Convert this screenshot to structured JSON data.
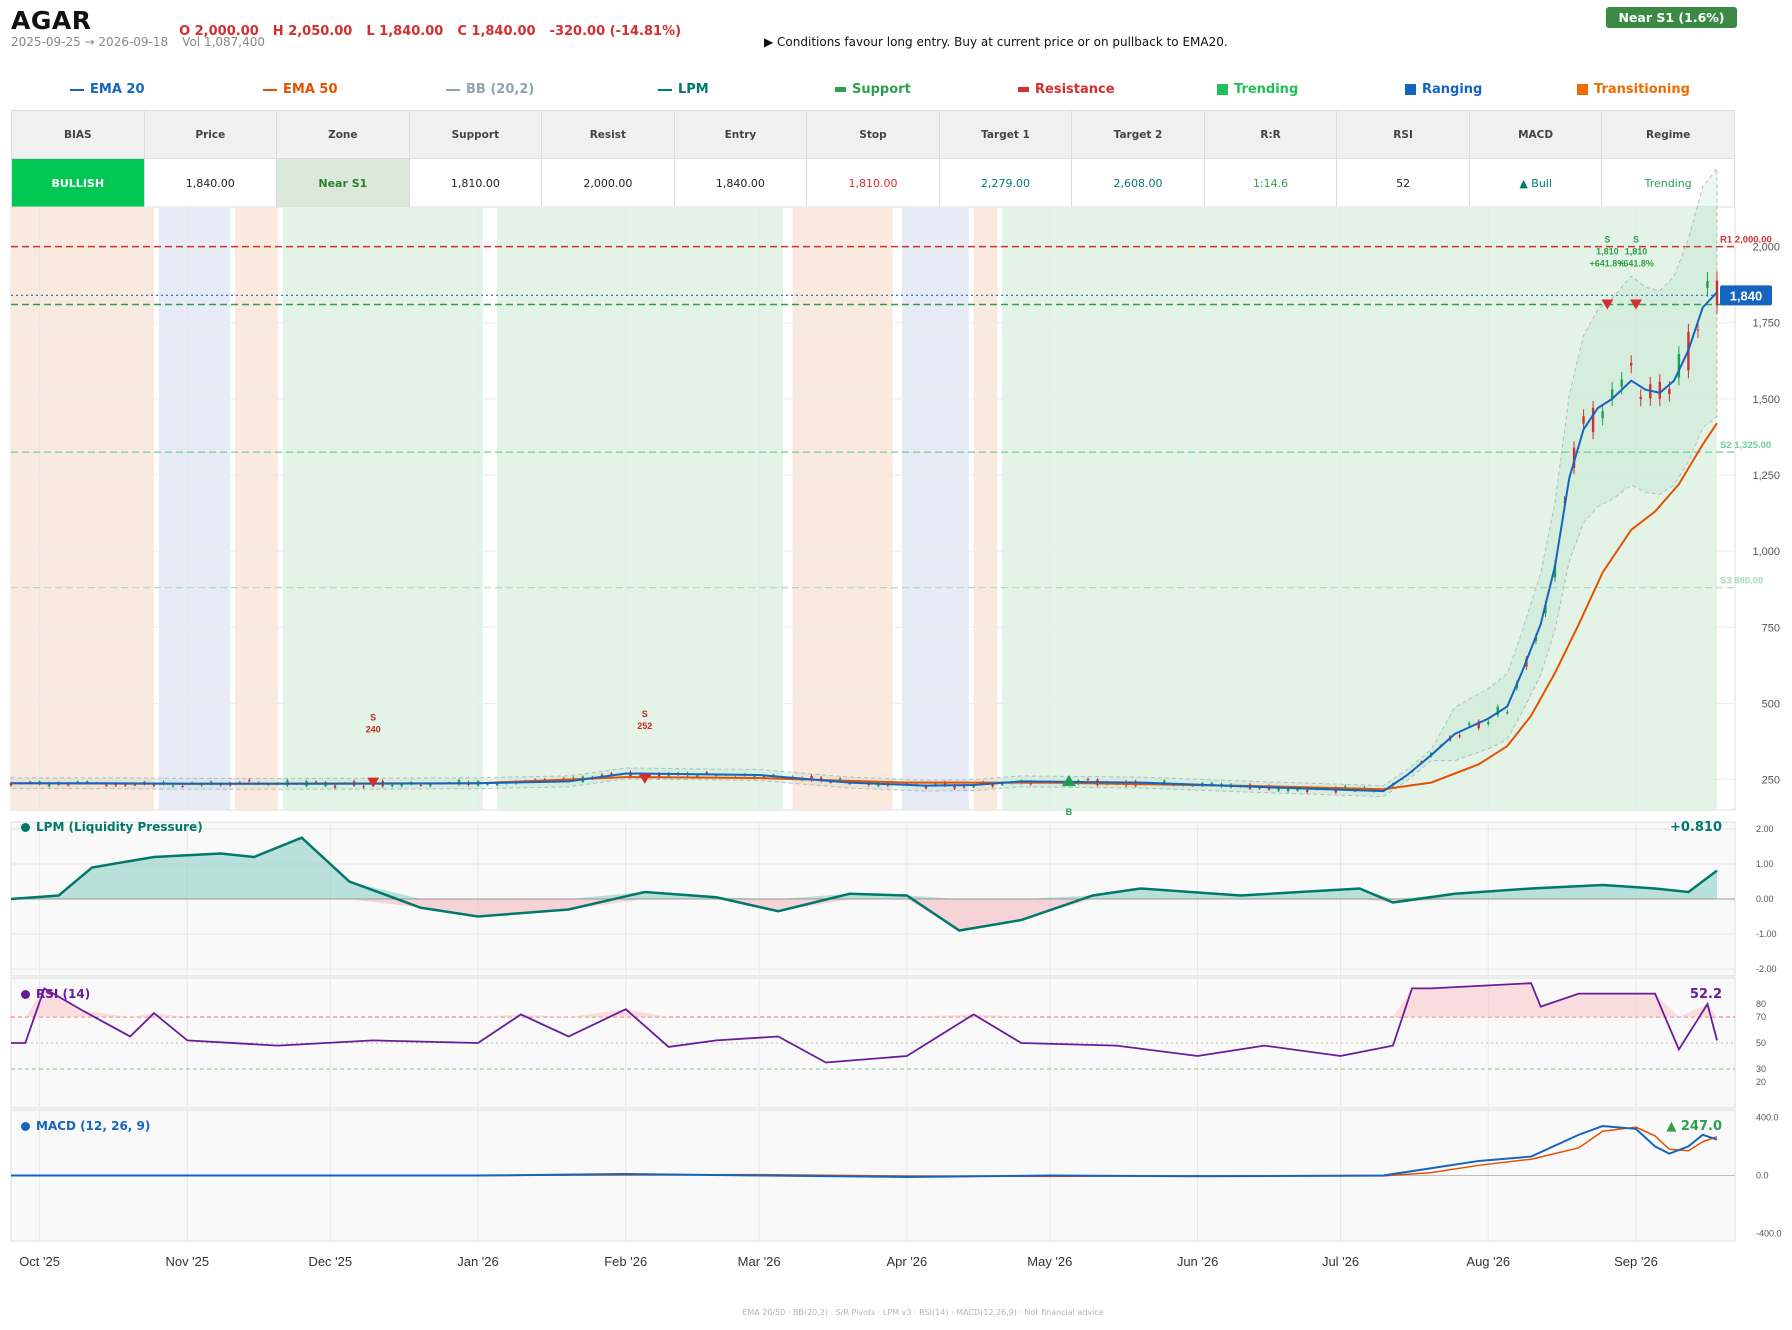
{
  "header": {
    "ticker": "AGAR",
    "open": "O 2,000.00",
    "high": "H 2,050.00",
    "low": "L 1,840.00",
    "close": "C 1,840.00",
    "change": "-320.00 (-14.81%)",
    "date_range": "2025-09-25 → 2026-09-18",
    "volume": "Vol 1,087,400",
    "signal": "▶  Conditions favour long entry. Buy at current price or on pullback to EMA20.",
    "zone_badge": "Near S1  (1.6%)"
  },
  "legend": [
    {
      "label": "EMA 20",
      "color": "#1565c0",
      "symbol": "line"
    },
    {
      "label": "EMA 50",
      "color": "#e65100",
      "symbol": "line"
    },
    {
      "label": "BB (20,2)",
      "color": "#90a4ae",
      "symbol": "line"
    },
    {
      "label": "LPM",
      "color": "#00796b",
      "symbol": "line"
    },
    {
      "label": "Support",
      "color": "#2e9e4f",
      "symbol": "bar"
    },
    {
      "label": "Resistance",
      "color": "#d32f2f",
      "symbol": "bar"
    },
    {
      "label": "Trending",
      "color": "#21c15a",
      "symbol": "square"
    },
    {
      "label": "Ranging",
      "color": "#1565c0",
      "symbol": "square"
    },
    {
      "label": "Transitioning",
      "color": "#ef6c00",
      "symbol": "square"
    }
  ],
  "summary": {
    "headers": [
      "BIAS",
      "Price",
      "Zone",
      "Support",
      "Resist",
      "Entry",
      "Stop",
      "Target 1",
      "Target 2",
      "R:R",
      "RSI",
      "MACD",
      "Regime"
    ],
    "values": [
      "BULLISH",
      "1,840.00",
      "Near S1",
      "1,810.00",
      "2,000.00",
      "1,840.00",
      "1,810.00",
      "2,279.00",
      "2,608.00",
      "1:14.6",
      "52",
      "▲ Bull",
      "Trending"
    ],
    "value_colors": [
      "#ffffff",
      "#222222",
      "#2e7d32",
      "#222222",
      "#222222",
      "#222222",
      "#d32f2f",
      "#00796b",
      "#00796b",
      "#2e9e4f",
      "#222222",
      "#00796b",
      "#21a05a"
    ],
    "cell_backgrounds": [
      "#00c853",
      "#ffffff",
      "#dbe9db",
      "#ffffff",
      "#ffffff",
      "#ffffff",
      "#ffffff",
      "#ffffff",
      "#ffffff",
      "#ffffff",
      "#ffffff",
      "#ffffff",
      "#ffffff"
    ]
  },
  "panels": {
    "lpm_title": "LPM (Liquidity Pressure)",
    "lpm_value": "+0.810",
    "rsi_title": "RSI (14)",
    "rsi_value": "52.2",
    "macd_title": "MACD (12, 26, 9)",
    "macd_value": "▲ 247.0"
  },
  "footer": "EMA 20/50  ·  BB(20,2)  ·  S/R Pivots  ·  LPM v3  ·  RSI(14)  ·  MACD(12,26,9)  ·  Not financial advice",
  "chart_data": {
    "type": "line",
    "x_tick_labels": [
      "Oct '25",
      "Nov '25",
      "Dec '25",
      "Jan '26",
      "Feb '26",
      "Mar '26",
      "Apr '26",
      "May '26",
      "Jun '26",
      "Jul '26",
      "Aug '26",
      "Sep '26"
    ],
    "price_axis": {
      "ylim": [
        150,
        2130
      ],
      "ticks": [
        250,
        500,
        750,
        "1,000",
        "1,250",
        "1,500",
        "1,750",
        "2,000"
      ]
    },
    "levels": [
      {
        "label": "R1 2,000.00",
        "value": 2000,
        "color": "#d32f2f"
      },
      {
        "label": "S1 1,810.00",
        "value": 1810,
        "color": "#2e9e4f"
      },
      {
        "label": "S2 1,325.00",
        "value": 1325,
        "color": "#6fcf97"
      },
      {
        "label": "S3 880.00",
        "value": 880,
        "color": "#a5dcb8"
      }
    ],
    "last_price_label": "1,840",
    "last_price": 1840,
    "regimes": [
      {
        "type": "transitioning",
        "from": "2025-09-25",
        "to": "2025-10-25"
      },
      {
        "type": "ranging",
        "from": "2025-10-26",
        "to": "2025-11-10"
      },
      {
        "type": "transitioning",
        "from": "2025-11-11",
        "to": "2025-11-20"
      },
      {
        "type": "trending",
        "from": "2025-11-21",
        "to": "2026-01-02"
      },
      {
        "type": "trending",
        "from": "2026-01-05",
        "to": "2026-03-06"
      },
      {
        "type": "transitioning",
        "from": "2026-03-08",
        "to": "2026-03-29"
      },
      {
        "type": "ranging",
        "from": "2026-03-31",
        "to": "2026-04-14"
      },
      {
        "type": "transitioning",
        "from": "2026-04-15",
        "to": "2026-04-20"
      },
      {
        "type": "trending",
        "from": "2026-04-21",
        "to": "2026-09-18"
      }
    ],
    "series": [
      {
        "name": "EMA 20",
        "dates": [
          "2025-09-25",
          "2025-10-15",
          "2025-11-01",
          "2025-12-01",
          "2026-01-01",
          "2026-01-20",
          "2026-02-01",
          "2026-03-01",
          "2026-03-20",
          "2026-04-05",
          "2026-04-15",
          "2026-04-25",
          "2026-05-20",
          "2026-06-15",
          "2026-07-10",
          "2026-07-15",
          "2026-07-20",
          "2026-07-25",
          "2026-08-01",
          "2026-08-05",
          "2026-08-08",
          "2026-08-12",
          "2026-08-15",
          "2026-08-18",
          "2026-08-21",
          "2026-08-24",
          "2026-08-27",
          "2026-08-31",
          "2026-09-03",
          "2026-09-06",
          "2026-09-09",
          "2026-09-12",
          "2026-09-15",
          "2026-09-18"
        ],
        "values": [
          238,
          238,
          236,
          236,
          238,
          244,
          270,
          265,
          240,
          230,
          232,
          244,
          240,
          225,
          212,
          265,
          330,
          400,
          450,
          490,
          600,
          760,
          950,
          1240,
          1400,
          1470,
          1500,
          1560,
          1530,
          1520,
          1560,
          1660,
          1800,
          1850
        ]
      },
      {
        "name": "EMA 50",
        "dates": [
          "2025-09-25",
          "2025-11-01",
          "2026-01-01",
          "2026-02-01",
          "2026-03-01",
          "2026-04-01",
          "2026-05-01",
          "2026-06-15",
          "2026-07-10",
          "2026-07-20",
          "2026-07-30",
          "2026-08-05",
          "2026-08-10",
          "2026-08-15",
          "2026-08-20",
          "2026-08-25",
          "2026-08-31",
          "2026-09-05",
          "2026-09-10",
          "2026-09-15",
          "2026-09-18"
        ],
        "values": [
          238,
          236,
          238,
          258,
          255,
          240,
          240,
          228,
          218,
          240,
          300,
          360,
          460,
          600,
          760,
          930,
          1070,
          1130,
          1220,
          1350,
          1420
        ]
      },
      {
        "name": "LPM",
        "dates": [
          "2025-09-25",
          "2025-10-05",
          "2025-10-12",
          "2025-10-25",
          "2025-11-08",
          "2025-11-15",
          "2025-11-25",
          "2025-12-05",
          "2025-12-20",
          "2026-01-01",
          "2026-01-20",
          "2026-02-05",
          "2026-02-20",
          "2026-03-05",
          "2026-03-20",
          "2026-04-01",
          "2026-04-12",
          "2026-04-25",
          "2026-05-10",
          "2026-05-20",
          "2026-06-10",
          "2026-07-05",
          "2026-07-12",
          "2026-07-25",
          "2026-08-10",
          "2026-08-25",
          "2026-09-05",
          "2026-09-12",
          "2026-09-18"
        ],
        "values": [
          0,
          0.1,
          0.9,
          1.2,
          1.3,
          1.2,
          1.75,
          0.5,
          -0.25,
          -0.5,
          -0.3,
          0.2,
          0.05,
          -0.35,
          0.15,
          0.1,
          -0.9,
          -0.6,
          0.1,
          0.3,
          0.1,
          0.3,
          -0.1,
          0.15,
          0.3,
          0.4,
          0.3,
          0.2,
          0.81
        ]
      },
      {
        "name": "RSI (14)",
        "dates": [
          "2025-09-25",
          "2025-09-28",
          "2025-10-02",
          "2025-10-10",
          "2025-10-20",
          "2025-10-25",
          "2025-11-01",
          "2025-11-20",
          "2025-12-10",
          "2026-01-01",
          "2026-01-10",
          "2026-01-20",
          "2026-02-01",
          "2026-02-10",
          "2026-02-20",
          "2026-03-05",
          "2026-03-15",
          "2026-04-01",
          "2026-04-15",
          "2026-04-25",
          "2026-05-15",
          "2026-06-01",
          "2026-06-15",
          "2026-07-01",
          "2026-07-12",
          "2026-07-16",
          "2026-07-20",
          "2026-08-10",
          "2026-08-12",
          "2026-08-20",
          "2026-09-05",
          "2026-09-10",
          "2026-09-16",
          "2026-09-18"
        ],
        "values": [
          50,
          50,
          92,
          75,
          55,
          73,
          52,
          48,
          52,
          50,
          72,
          55,
          76,
          47,
          52,
          55,
          35,
          40,
          72,
          50,
          48,
          40,
          48,
          40,
          48,
          92,
          92,
          96,
          78,
          88,
          88,
          45,
          80,
          52
        ]
      },
      {
        "name": "MACD",
        "dates": [
          "2025-09-25",
          "2026-01-01",
          "2026-02-01",
          "2026-03-01",
          "2026-04-01",
          "2026-05-01",
          "2026-06-01",
          "2026-07-10",
          "2026-07-20",
          "2026-07-30",
          "2026-08-10",
          "2026-08-20",
          "2026-08-25",
          "2026-09-01",
          "2026-09-05",
          "2026-09-08",
          "2026-09-12",
          "2026-09-15",
          "2026-09-18"
        ],
        "values": [
          0,
          0,
          10,
          0,
          -10,
          0,
          -5,
          0,
          50,
          100,
          130,
          280,
          340,
          320,
          200,
          150,
          200,
          280,
          247
        ]
      }
    ],
    "markers": [
      {
        "label": "S",
        "value_text": "240",
        "type": "sell",
        "date": "2025-12-10",
        "price": 240
      },
      {
        "label": "S",
        "value_text": "252",
        "type": "sell",
        "date": "2026-02-05",
        "price": 252
      },
      {
        "label": "B",
        "type": "buy",
        "date": "2026-05-05",
        "price": 245
      },
      {
        "label": "S",
        "value_text": "1,810",
        "gain_text": "+641.8%",
        "type": "sell",
        "date": "2026-08-26",
        "price": 1810
      },
      {
        "label": "S",
        "value_text": "1,810",
        "gain_text": "+641.8%",
        "type": "sell",
        "date": "2026-09-01",
        "price": 1810
      }
    ],
    "lpm_axis": {
      "ylim": [
        -2.2,
        2.2
      ],
      "ticks": [
        "2.00",
        "1.00",
        "0.00",
        "-1.00",
        "-2.00"
      ]
    },
    "rsi_axis": {
      "ylim": [
        0,
        100
      ],
      "ticks": [
        80,
        70,
        50,
        30,
        20
      ]
    },
    "macd_axis": {
      "ylim": [
        -450,
        450
      ],
      "ticks": [
        "400.0",
        "0.0",
        "-400.0"
      ]
    }
  }
}
